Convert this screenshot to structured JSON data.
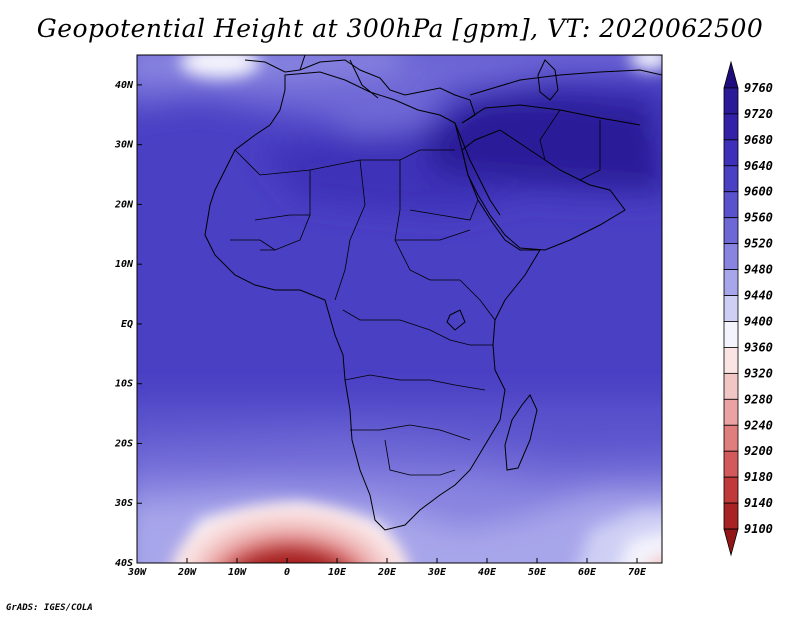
{
  "title": "Geopotential Height at 300hPa [gpm], VT: 2020062500",
  "footer": "GrADS: IGES/COLA",
  "map": {
    "variable": "Geopotential Height",
    "level": "300hPa",
    "units": "gpm",
    "valid_time": "2020062500",
    "lon_range": [
      -30,
      75
    ],
    "lat_range": [
      -40,
      45
    ],
    "lon_ticks": [
      "30W",
      "20W",
      "10W",
      "0",
      "10E",
      "20E",
      "30E",
      "40E",
      "50E",
      "60E",
      "70E"
    ],
    "lat_ticks": [
      "40N",
      "30N",
      "20N",
      "10N",
      "EQ",
      "10S",
      "20S",
      "30S",
      "40S"
    ]
  },
  "colorbar": {
    "labels": [
      "9760",
      "9720",
      "9680",
      "9640",
      "9600",
      "9560",
      "9520",
      "9480",
      "9440",
      "9400",
      "9360",
      "9320",
      "9280",
      "9240",
      "9200",
      "9180",
      "9140",
      "9100"
    ],
    "colors": [
      "#1f0d7e",
      "#2a1a98",
      "#3322a8",
      "#3e30b8",
      "#4a40c4",
      "#5a52cc",
      "#6e68d6",
      "#8884e0",
      "#a8a6ea",
      "#cfcff5",
      "#f4f4fd",
      "#fbe4e4",
      "#f3c6c6",
      "#eaa2a2",
      "#e07e7e",
      "#d35a5a",
      "#c13a3a",
      "#a82424",
      "#921616"
    ]
  }
}
